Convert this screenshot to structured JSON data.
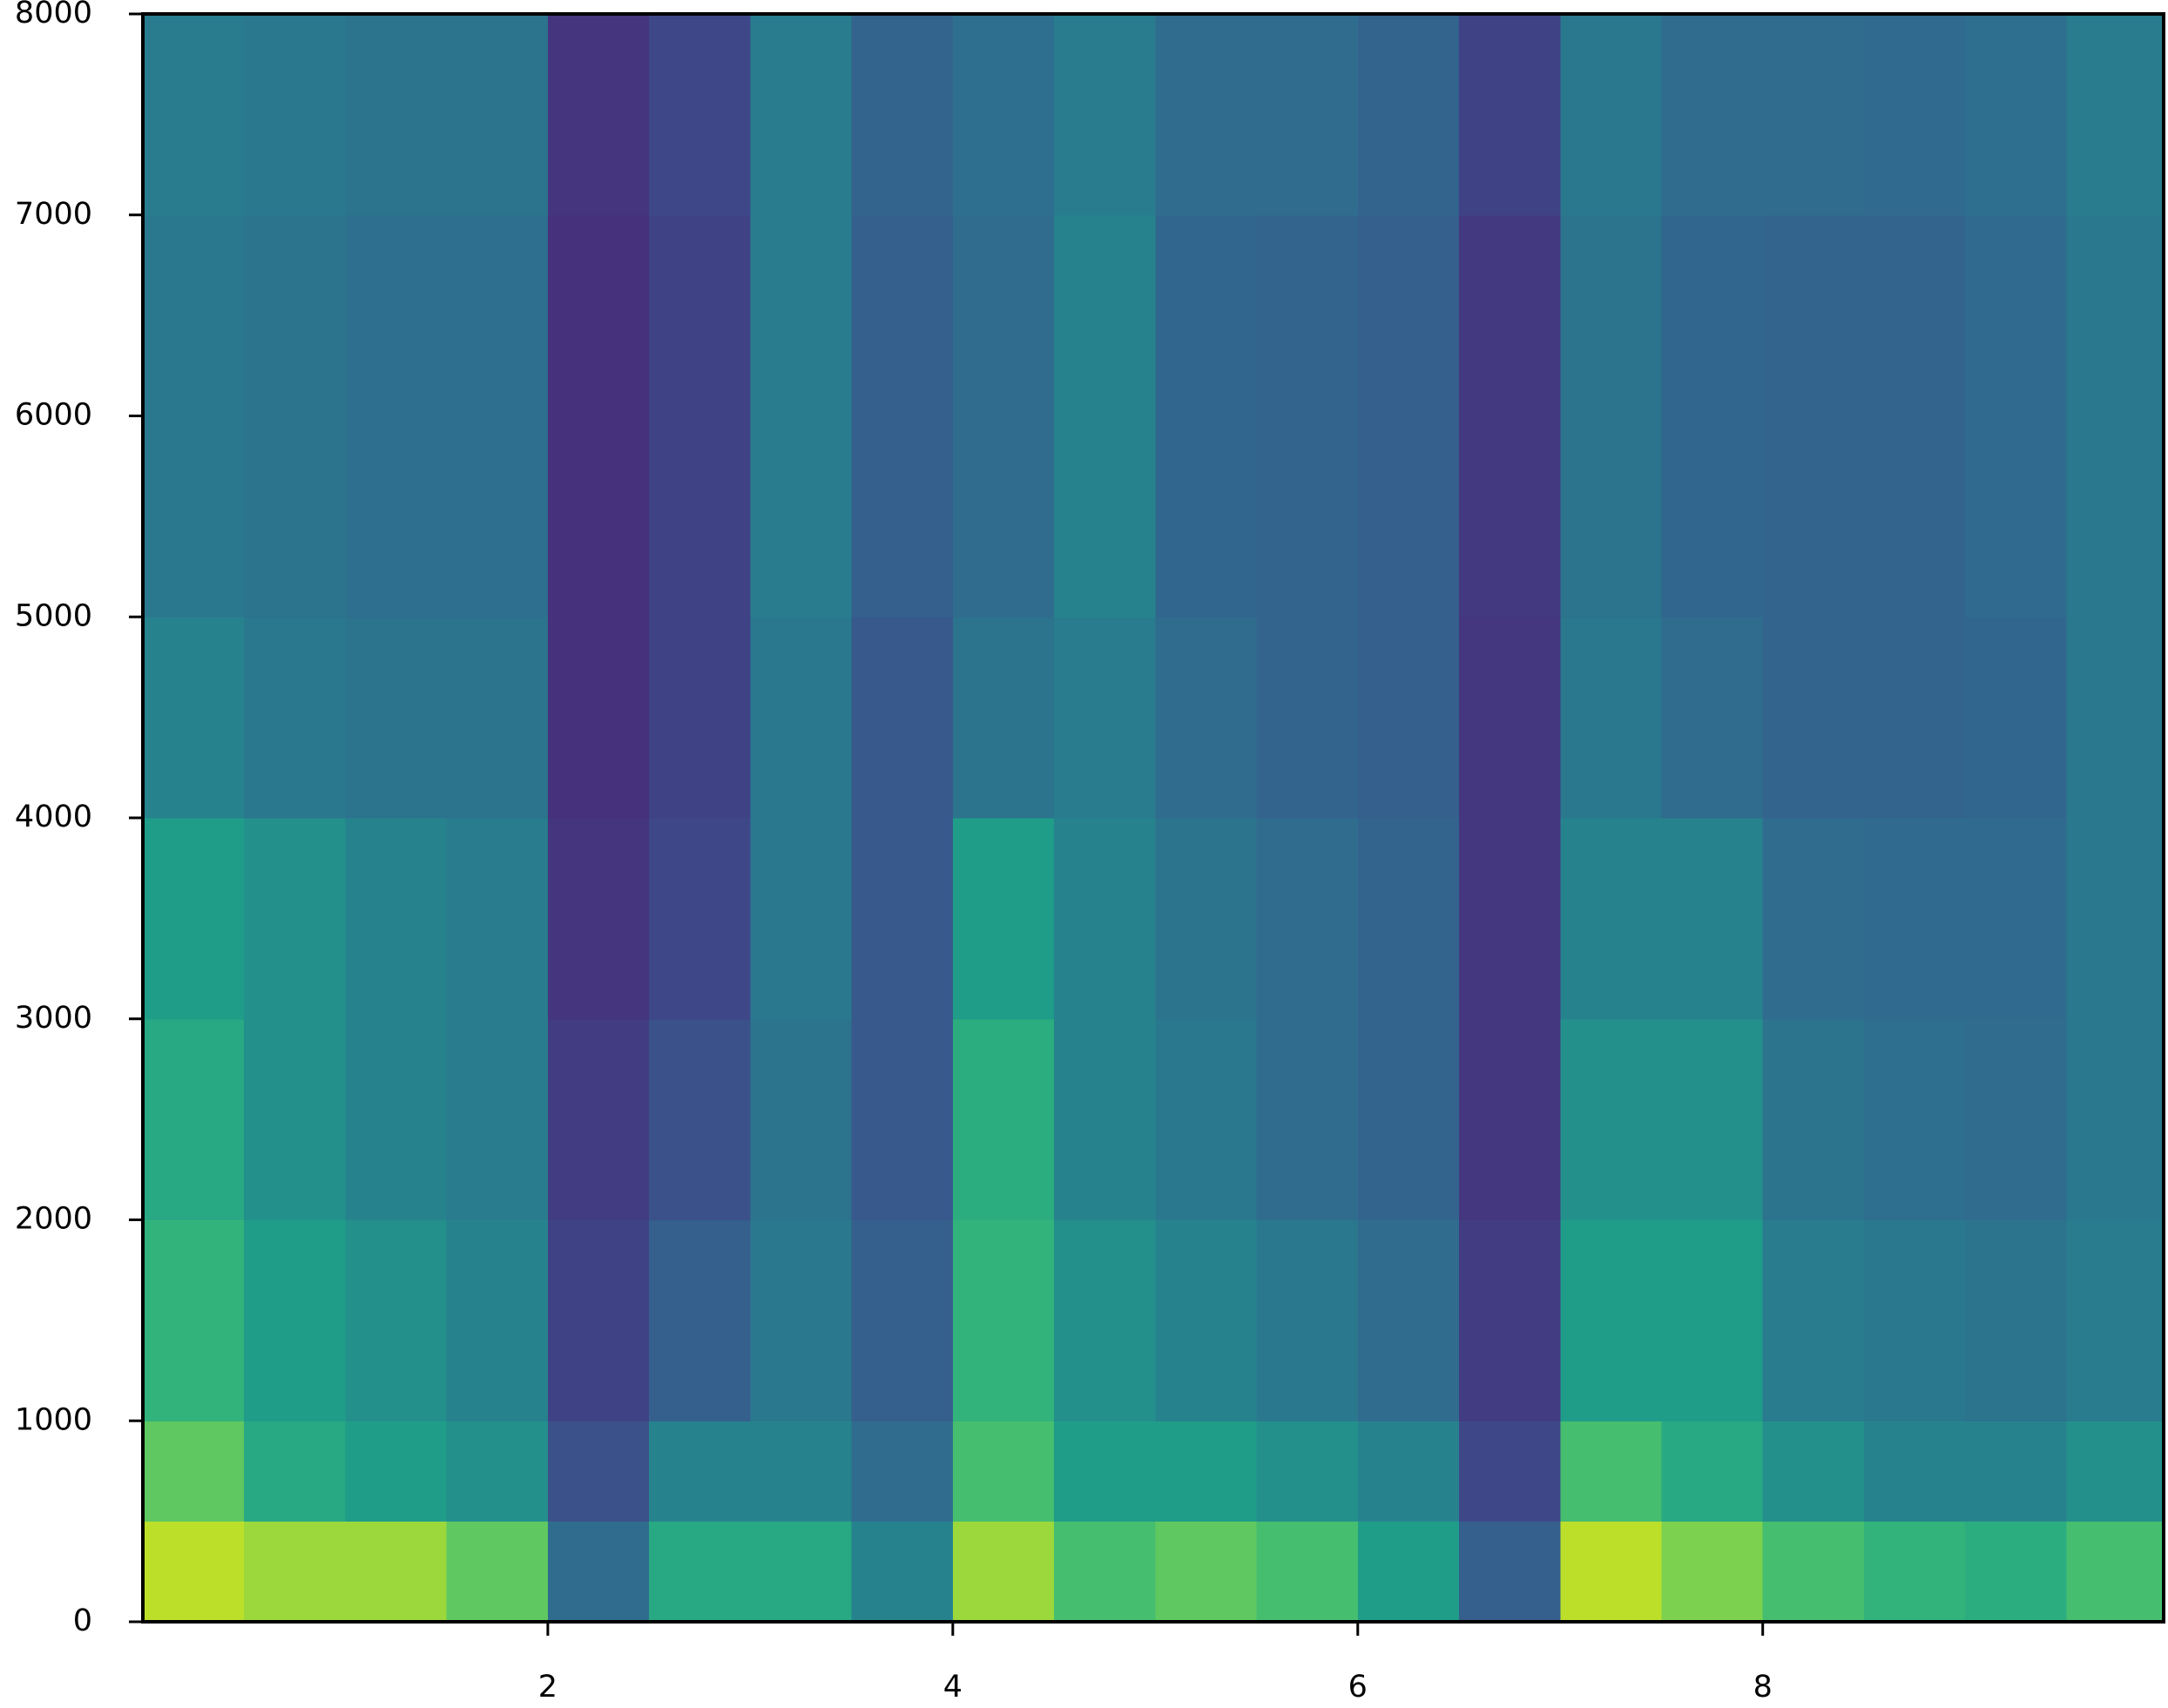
{
  "chart_data": {
    "type": "heatmap",
    "colormap": "viridis",
    "x": [
      0,
      0.5,
      1,
      1.5,
      2,
      2.5,
      3,
      3.5,
      4,
      4.5,
      5,
      5.5,
      6,
      6.5,
      7,
      7.5,
      8,
      8.5,
      9,
      9.5,
      9.98
    ],
    "y": [
      0,
      500,
      1000,
      2000,
      3000,
      4000,
      5000,
      6000,
      7000,
      8000
    ],
    "values": [
      [
        0.9,
        0.75,
        0.65,
        0.6,
        0.55,
        0.45,
        0.4,
        0.4,
        0.42
      ],
      [
        0.85,
        0.6,
        0.55,
        0.5,
        0.5,
        0.4,
        0.38,
        0.38,
        0.4
      ],
      [
        0.85,
        0.55,
        0.5,
        0.45,
        0.45,
        0.38,
        0.36,
        0.36,
        0.38
      ],
      [
        0.75,
        0.5,
        0.45,
        0.42,
        0.42,
        0.38,
        0.36,
        0.36,
        0.38
      ],
      [
        0.35,
        0.25,
        0.2,
        0.18,
        0.15,
        0.14,
        0.14,
        0.14,
        0.15
      ],
      [
        0.6,
        0.45,
        0.3,
        0.25,
        0.22,
        0.2,
        0.2,
        0.2,
        0.22
      ],
      [
        0.6,
        0.45,
        0.4,
        0.38,
        0.4,
        0.4,
        0.42,
        0.42,
        0.42
      ],
      [
        0.45,
        0.35,
        0.3,
        0.28,
        0.28,
        0.28,
        0.3,
        0.3,
        0.32
      ],
      [
        0.85,
        0.7,
        0.65,
        0.62,
        0.55,
        0.38,
        0.35,
        0.35,
        0.36
      ],
      [
        0.7,
        0.55,
        0.5,
        0.45,
        0.45,
        0.42,
        0.45,
        0.45,
        0.42
      ],
      [
        0.75,
        0.55,
        0.45,
        0.4,
        0.38,
        0.35,
        0.33,
        0.33,
        0.35
      ],
      [
        0.7,
        0.5,
        0.4,
        0.35,
        0.35,
        0.32,
        0.32,
        0.32,
        0.35
      ],
      [
        0.55,
        0.45,
        0.35,
        0.32,
        0.32,
        0.3,
        0.3,
        0.3,
        0.32
      ],
      [
        0.3,
        0.22,
        0.18,
        0.16,
        0.16,
        0.16,
        0.17,
        0.17,
        0.2
      ],
      [
        0.9,
        0.7,
        0.55,
        0.5,
        0.45,
        0.4,
        0.38,
        0.38,
        0.4
      ],
      [
        0.8,
        0.6,
        0.55,
        0.5,
        0.45,
        0.35,
        0.33,
        0.33,
        0.35
      ],
      [
        0.7,
        0.5,
        0.42,
        0.38,
        0.35,
        0.32,
        0.32,
        0.32,
        0.35
      ],
      [
        0.65,
        0.45,
        0.4,
        0.36,
        0.34,
        0.32,
        0.32,
        0.32,
        0.34
      ],
      [
        0.62,
        0.45,
        0.38,
        0.35,
        0.34,
        0.33,
        0.34,
        0.34,
        0.36
      ],
      [
        0.7,
        0.5,
        0.42,
        0.4,
        0.4,
        0.4,
        0.4,
        0.4,
        0.42
      ]
    ],
    "xlim": [
      0,
      9.98
    ],
    "ylim": [
      0,
      8000
    ],
    "xticks": [
      2,
      4,
      6,
      8
    ],
    "yticks": [
      0,
      1000,
      2000,
      3000,
      4000,
      5000,
      6000,
      7000,
      8000
    ]
  }
}
